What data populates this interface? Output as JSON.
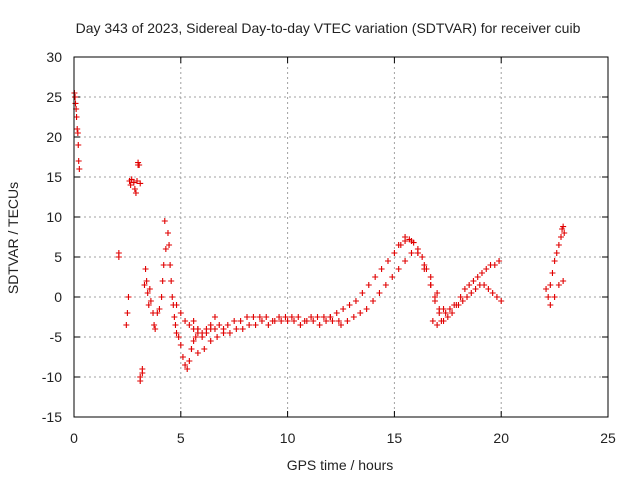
{
  "chart_data": {
    "type": "scatter",
    "title": "Day 343 of 2023, Sidereal Day-to-day VTEC variation (SDTVAR) for receiver cuib",
    "xlabel": "GPS time / hours",
    "ylabel": "SDTVAR / TECUs",
    "xlim": [
      0,
      25
    ],
    "ylim": [
      -15,
      30
    ],
    "xticks": [
      "0",
      "5",
      "10",
      "15",
      "20",
      "25"
    ],
    "yticks": [
      "-15",
      "-10",
      "-5",
      "0",
      "5",
      "10",
      "15",
      "20",
      "25",
      "30"
    ],
    "grid": true,
    "marker": "+",
    "color": "#e00000",
    "series": [
      {
        "name": "SDTVAR",
        "x": [
          0.02,
          0.05,
          0.07,
          0.1,
          0.12,
          0.15,
          0.18,
          0.2,
          0.22,
          0.25,
          2.1,
          2.1,
          2.45,
          2.5,
          2.55,
          2.6,
          2.65,
          2.7,
          2.8,
          2.85,
          2.9,
          2.95,
          3.0,
          3.0,
          3.05,
          3.1,
          3.1,
          3.2,
          3.1,
          3.2,
          3.3,
          3.35,
          3.4,
          3.45,
          3.5,
          3.55,
          3.6,
          3.7,
          3.75,
          3.8,
          3.9,
          4.0,
          4.1,
          4.15,
          4.2,
          4.25,
          4.3,
          4.4,
          4.45,
          4.5,
          4.55,
          4.6,
          4.65,
          4.7,
          4.75,
          4.8,
          4.9,
          5.0,
          5.1,
          5.2,
          5.3,
          5.4,
          5.5,
          5.6,
          5.7,
          5.8,
          4.8,
          5.0,
          5.2,
          5.4,
          5.6,
          5.8,
          6.0,
          6.2,
          6.4,
          6.6,
          6.8,
          7.0,
          7.2,
          7.5,
          7.8,
          8.1,
          8.4,
          8.7,
          9.0,
          9.3,
          9.6,
          9.9,
          10.2,
          10.5,
          10.8,
          11.1,
          11.4,
          11.7,
          12.0,
          5.5,
          5.8,
          6.1,
          6.4,
          6.7,
          7.0,
          7.3,
          7.6,
          7.9,
          8.2,
          8.5,
          8.8,
          9.1,
          9.4,
          9.7,
          10.0,
          10.3,
          10.6,
          10.9,
          11.2,
          11.5,
          11.8,
          12.1,
          12.4,
          5.6,
          5.8,
          6.0,
          6.2,
          6.4,
          6.6,
          12.0,
          12.3,
          12.6,
          12.9,
          13.2,
          13.5,
          13.8,
          14.1,
          14.4,
          14.7,
          15.0,
          15.3,
          15.5,
          15.7,
          15.9,
          16.1,
          16.3,
          16.5,
          16.7,
          16.9,
          17.1,
          12.5,
          12.8,
          13.1,
          13.4,
          13.7,
          14.0,
          14.3,
          14.6,
          14.9,
          15.2,
          15.5,
          15.8,
          16.1,
          16.4,
          16.7,
          17.0,
          17.3,
          15.2,
          15.5,
          15.8,
          16.1,
          16.4,
          16.7,
          16.9,
          17.1,
          17.3,
          17.5,
          17.7,
          17.9,
          18.1,
          18.3,
          18.5,
          18.7,
          18.9,
          19.1,
          19.3,
          19.5,
          19.7,
          19.9,
          16.8,
          17.0,
          17.2,
          17.4,
          17.6,
          17.8,
          18.0,
          18.2,
          18.4,
          18.6,
          18.8,
          19.0,
          19.2,
          19.4,
          19.6,
          19.8,
          20.0,
          22.1,
          22.2,
          22.3,
          22.4,
          22.5,
          22.6,
          22.7,
          22.8,
          22.85,
          22.9,
          22.95,
          22.3,
          22.5,
          22.7,
          22.9
        ],
        "y": [
          25.5,
          25.0,
          24.2,
          23.5,
          22.5,
          21.0,
          20.5,
          19.0,
          17.0,
          16.0,
          5.5,
          5.0,
          -3.5,
          -2.0,
          0.0,
          14.5,
          14.0,
          14.7,
          14.3,
          13.5,
          13.0,
          14.5,
          16.5,
          16.8,
          16.5,
          14.2,
          -10.5,
          -9.5,
          -10.0,
          -9.0,
          1.5,
          3.5,
          2.0,
          0.5,
          -1.0,
          1.0,
          -0.5,
          -2.0,
          -3.5,
          -4.0,
          -2.0,
          -1.5,
          0.0,
          2.0,
          4.0,
          9.5,
          6.0,
          8.0,
          6.5,
          4.0,
          2.0,
          0.0,
          -1.0,
          -2.5,
          -3.5,
          -4.5,
          -5.0,
          -6.0,
          -7.5,
          -8.5,
          -9.0,
          -8.0,
          -6.5,
          -5.5,
          -5.0,
          -4.5,
          -1.0,
          -2.0,
          -3.0,
          -3.5,
          -4.0,
          -4.0,
          -4.5,
          -4.5,
          -4.0,
          -4.0,
          -3.5,
          -4.0,
          -3.5,
          -3.0,
          -3.0,
          -2.5,
          -2.5,
          -2.5,
          -2.5,
          -3.0,
          -2.5,
          -2.5,
          -2.5,
          -2.5,
          -3.0,
          -2.5,
          -2.5,
          -2.5,
          -2.5,
          -6.5,
          -7.0,
          -6.5,
          -5.5,
          -5.0,
          -4.5,
          -4.5,
          -4.0,
          -4.0,
          -3.5,
          -3.5,
          -3.0,
          -3.5,
          -3.0,
          -3.0,
          -3.0,
          -3.0,
          -3.5,
          -3.0,
          -3.0,
          -3.5,
          -3.0,
          -3.0,
          -3.0,
          -3.0,
          -4.0,
          -5.0,
          -4.0,
          -3.5,
          -2.5,
          -2.5,
          -2.0,
          -1.5,
          -1.0,
          -0.5,
          0.5,
          1.5,
          2.5,
          3.5,
          4.5,
          5.5,
          6.5,
          7.0,
          7.2,
          6.8,
          6.0,
          5.0,
          3.5,
          1.5,
          0.0,
          -1.5,
          -3.5,
          -3.0,
          -2.5,
          -2.0,
          -1.5,
          -0.5,
          0.5,
          1.5,
          2.5,
          3.5,
          4.5,
          5.5,
          5.5,
          4.0,
          2.5,
          0.5,
          -1.5,
          6.5,
          7.5,
          7.0,
          5.5,
          3.5,
          1.5,
          -0.5,
          -2.0,
          -3.0,
          -2.5,
          -2.0,
          -1.0,
          0.0,
          1.0,
          1.5,
          2.0,
          2.5,
          3.0,
          3.5,
          4.0,
          4.0,
          4.5,
          -3.0,
          -3.5,
          -3.0,
          -2.0,
          -1.5,
          -1.0,
          -1.0,
          -0.5,
          0.0,
          0.5,
          1.0,
          1.5,
          1.5,
          1.0,
          0.5,
          0.0,
          -0.5,
          1.0,
          0.0,
          1.5,
          3.0,
          4.5,
          5.5,
          6.5,
          7.5,
          8.5,
          8.8,
          8.0,
          -1.0,
          0.0,
          1.5,
          2.0
        ]
      }
    ]
  }
}
